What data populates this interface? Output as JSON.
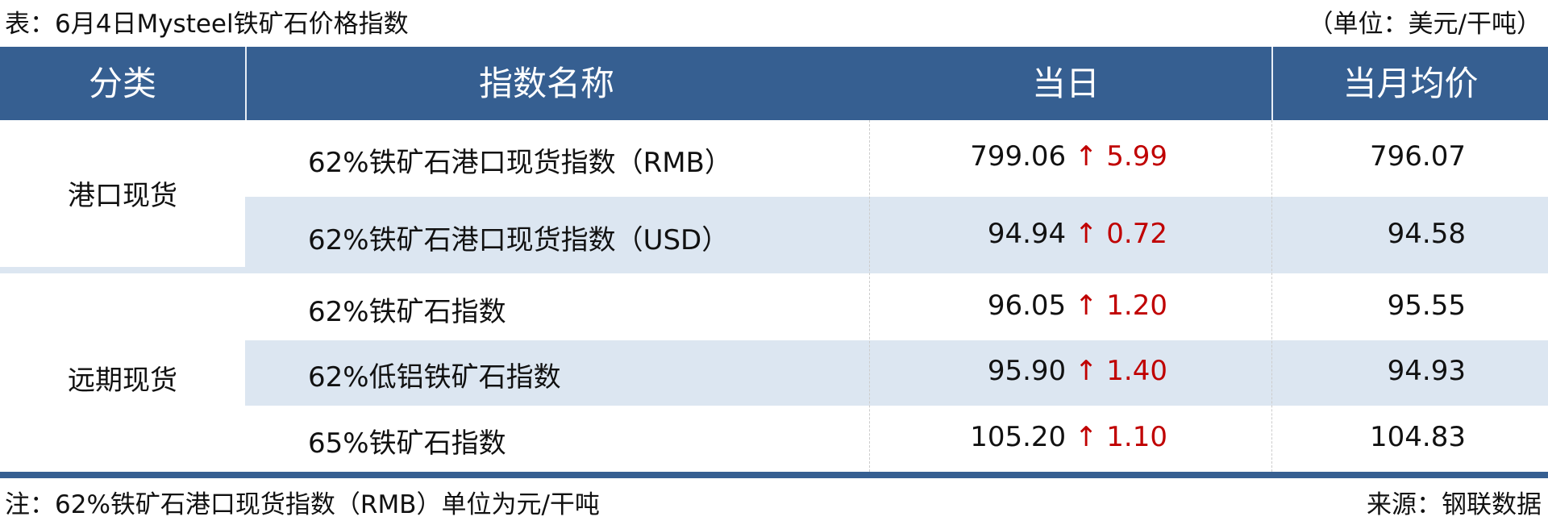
{
  "title": "表：6月4日Mysteel铁矿石价格指数",
  "unit": "（单位：美元/干吨）",
  "header": {
    "category": "分类",
    "name": "指数名称",
    "today": "当日",
    "month_avg": "当月均价"
  },
  "colors": {
    "header_bg": "#365f91",
    "alt_row": "#dce6f1",
    "up": "#c00000"
  },
  "groups": [
    "港口现货",
    "远期现货"
  ],
  "rows": [
    {
      "name": "62%铁矿石港口现货指数（RMB）",
      "today": "799.06",
      "arrow": "↑",
      "change": "5.99",
      "avg": "796.07"
    },
    {
      "name": "62%铁矿石港口现货指数（USD）",
      "today": "94.94",
      "arrow": "↑",
      "change": "0.72",
      "avg": "94.58"
    },
    {
      "name": "62%铁矿石指数",
      "today": "96.05",
      "arrow": "↑",
      "change": "1.20",
      "avg": "95.55"
    },
    {
      "name": "62%低铝铁矿石指数",
      "today": "95.90",
      "arrow": "↑",
      "change": "1.40",
      "avg": "94.93"
    },
    {
      "name": "65%铁矿石指数",
      "today": "105.20",
      "arrow": "↑",
      "change": "1.10",
      "avg": "104.83"
    }
  ],
  "note": "注：62%铁矿石港口现货指数（RMB）单位为元/干吨",
  "source": "来源：钢联数据"
}
